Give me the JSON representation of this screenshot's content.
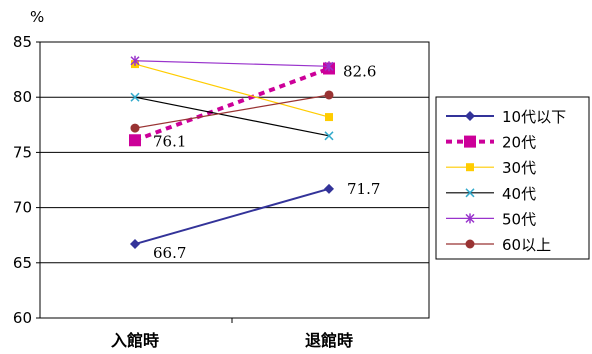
{
  "chart_data": {
    "type": "line",
    "title": "",
    "xlabel": "",
    "ylabel": "",
    "y_unit": "%",
    "categories": [
      "入館時",
      "退館時"
    ],
    "ylim": [
      60,
      85
    ],
    "yticks": [
      "60",
      "65",
      "70",
      "75",
      "80",
      "85"
    ],
    "grid": "horizontal",
    "legend_position": "right",
    "series": [
      {
        "name": "10代以下",
        "values": [
          66.7,
          71.7
        ],
        "color": "#333399",
        "marker": "diamond",
        "dash": "solid"
      },
      {
        "name": "20代",
        "values": [
          76.1,
          82.6
        ],
        "color": "#cc0099",
        "marker": "square",
        "dash": "dashed"
      },
      {
        "name": "30代",
        "values": [
          83.0,
          78.2
        ],
        "color": "#ffcc00",
        "marker": "square-small",
        "dash": "solid"
      },
      {
        "name": "40代",
        "values": [
          80.0,
          76.5
        ],
        "color": "#000000",
        "marker": "x",
        "dash": "solid",
        "marker_color": "#33aacc"
      },
      {
        "name": "50代",
        "values": [
          83.3,
          82.8
        ],
        "color": "#9933cc",
        "marker": "asterisk",
        "dash": "solid"
      },
      {
        "name": "60以上",
        "values": [
          77.2,
          80.2
        ],
        "color": "#993333",
        "marker": "circle",
        "dash": "solid"
      }
    ],
    "data_labels": [
      {
        "series": "10代以下",
        "point": 0,
        "text": "66.7"
      },
      {
        "series": "10代以下",
        "point": 1,
        "text": "71.7"
      },
      {
        "series": "20代",
        "point": 0,
        "text": "76.1"
      },
      {
        "series": "20代",
        "point": 1,
        "text": "82.6"
      }
    ]
  }
}
